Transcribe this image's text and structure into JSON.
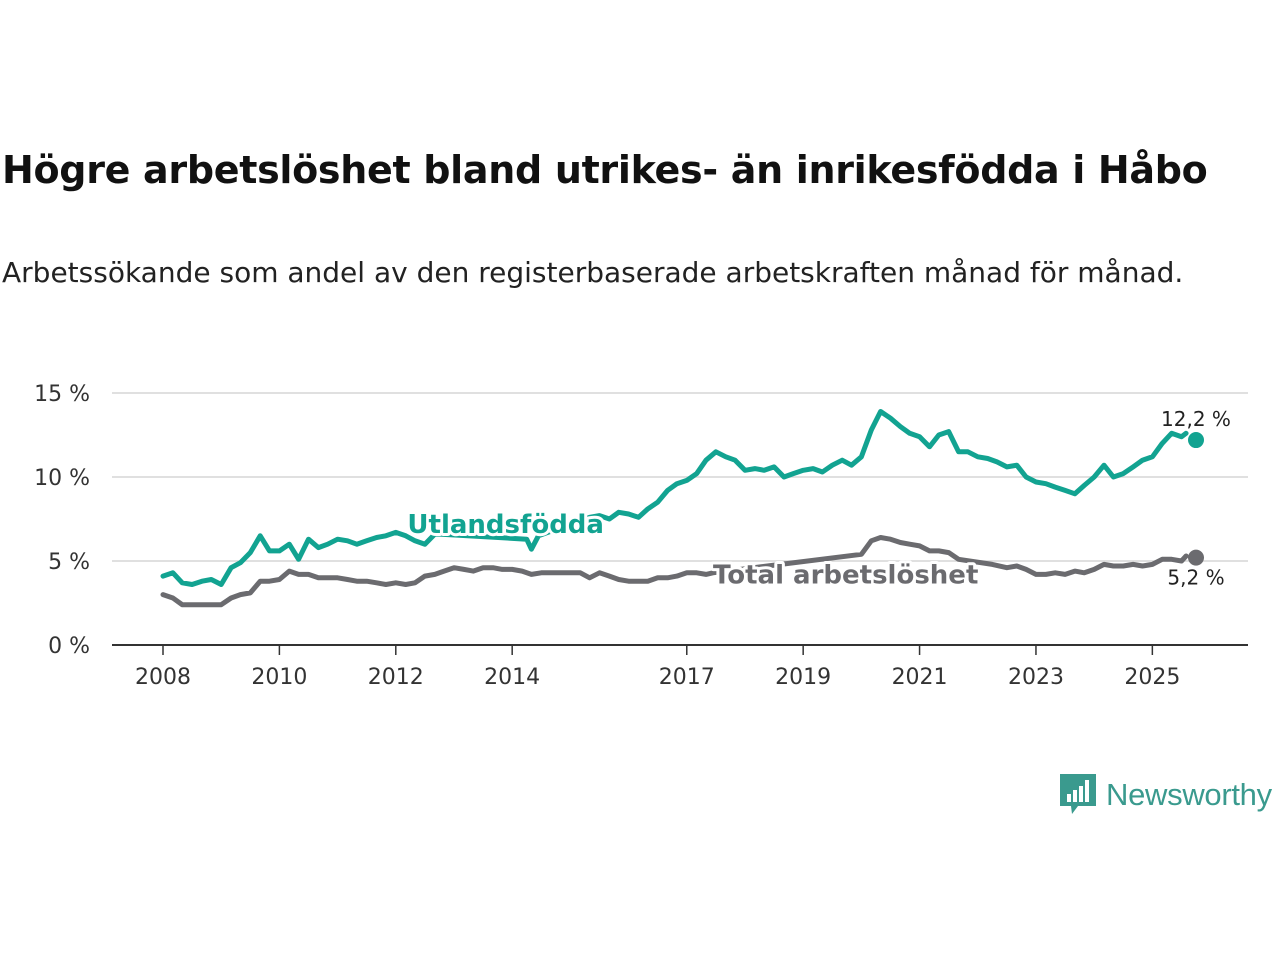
{
  "title": "Högre arbetslöshet bland utrikes- än inrikesfödda i Håbo",
  "subtitle": "Arbetssökande som andel av den registerbaserade arbetskraften månad för månad.",
  "brand": {
    "name": "Newsworthy",
    "color": "#3a9a8e",
    "icon": "bar-chart-speech-icon"
  },
  "chart_data": {
    "type": "line",
    "ylim": [
      0,
      15
    ],
    "y_ticks": [
      0,
      5,
      10,
      15
    ],
    "y_tick_labels": [
      "0 %",
      "5 %",
      "10 %",
      "15 %"
    ],
    "xlim": [
      2008.0,
      2025.75
    ],
    "x_ticks": [
      2008,
      2010,
      2012,
      2014,
      2017,
      2019,
      2021,
      2023,
      2025
    ],
    "x_tick_labels": [
      "2008",
      "2010",
      "2012",
      "2014",
      "2017",
      "2019",
      "2021",
      "2023",
      "2025"
    ],
    "grid": true,
    "series": [
      {
        "name": "Utlandsfödda",
        "color": "#12a391",
        "end_label": "12,2 %",
        "points": [
          [
            2008.0,
            4.1
          ],
          [
            2008.17,
            4.3
          ],
          [
            2008.33,
            3.7
          ],
          [
            2008.5,
            3.6
          ],
          [
            2008.67,
            3.8
          ],
          [
            2008.83,
            3.9
          ],
          [
            2009.0,
            3.6
          ],
          [
            2009.17,
            4.6
          ],
          [
            2009.33,
            4.9
          ],
          [
            2009.5,
            5.5
          ],
          [
            2009.67,
            6.5
          ],
          [
            2009.83,
            5.6
          ],
          [
            2010.0,
            5.6
          ],
          [
            2010.17,
            6.0
          ],
          [
            2010.33,
            5.1
          ],
          [
            2010.5,
            6.3
          ],
          [
            2010.67,
            5.8
          ],
          [
            2010.83,
            6.0
          ],
          [
            2011.0,
            6.3
          ],
          [
            2011.17,
            6.2
          ],
          [
            2011.33,
            6.0
          ],
          [
            2011.5,
            6.2
          ],
          [
            2011.67,
            6.4
          ],
          [
            2011.83,
            6.5
          ],
          [
            2012.0,
            6.7
          ],
          [
            2012.17,
            6.5
          ],
          [
            2012.33,
            6.2
          ],
          [
            2012.5,
            6.0
          ],
          [
            2012.67,
            6.6
          ],
          [
            2012.75,
            6.6
          ],
          [
            2014.25,
            6.3
          ],
          [
            2014.33,
            5.7
          ],
          [
            2014.45,
            6.5
          ],
          [
            2015.33,
            7.6
          ],
          [
            2015.5,
            7.7
          ],
          [
            2015.67,
            7.5
          ],
          [
            2015.83,
            7.9
          ],
          [
            2016.0,
            7.8
          ],
          [
            2016.17,
            7.6
          ],
          [
            2016.33,
            8.1
          ],
          [
            2016.5,
            8.5
          ],
          [
            2016.67,
            9.2
          ],
          [
            2016.83,
            9.6
          ],
          [
            2017.0,
            9.8
          ],
          [
            2017.17,
            10.2
          ],
          [
            2017.33,
            11.0
          ],
          [
            2017.5,
            11.5
          ],
          [
            2017.67,
            11.2
          ],
          [
            2017.83,
            11.0
          ],
          [
            2018.0,
            10.4
          ],
          [
            2018.17,
            10.5
          ],
          [
            2018.33,
            10.4
          ],
          [
            2018.5,
            10.6
          ],
          [
            2018.67,
            10.0
          ],
          [
            2018.83,
            10.2
          ],
          [
            2019.0,
            10.4
          ],
          [
            2019.17,
            10.5
          ],
          [
            2019.33,
            10.3
          ],
          [
            2019.5,
            10.7
          ],
          [
            2019.67,
            11.0
          ],
          [
            2019.83,
            10.7
          ],
          [
            2020.0,
            11.2
          ],
          [
            2020.17,
            12.8
          ],
          [
            2020.33,
            13.9
          ],
          [
            2020.5,
            13.5
          ],
          [
            2020.67,
            13.0
          ],
          [
            2020.83,
            12.6
          ],
          [
            2021.0,
            12.4
          ],
          [
            2021.17,
            11.8
          ],
          [
            2021.33,
            12.5
          ],
          [
            2021.5,
            12.7
          ],
          [
            2021.67,
            11.5
          ],
          [
            2021.83,
            11.5
          ],
          [
            2022.0,
            11.2
          ],
          [
            2022.17,
            11.1
          ],
          [
            2022.33,
            10.9
          ],
          [
            2022.5,
            10.6
          ],
          [
            2022.67,
            10.7
          ],
          [
            2022.83,
            10.0
          ],
          [
            2023.0,
            9.7
          ],
          [
            2023.17,
            9.6
          ],
          [
            2023.33,
            9.4
          ],
          [
            2023.5,
            9.2
          ],
          [
            2023.67,
            9.0
          ],
          [
            2023.83,
            9.5
          ],
          [
            2024.0,
            10.0
          ],
          [
            2024.17,
            10.7
          ],
          [
            2024.33,
            10.0
          ],
          [
            2024.5,
            10.2
          ],
          [
            2024.67,
            10.6
          ],
          [
            2024.83,
            11.0
          ],
          [
            2025.0,
            11.2
          ],
          [
            2025.17,
            12.0
          ],
          [
            2025.33,
            12.6
          ],
          [
            2025.5,
            12.4
          ],
          [
            2025.58,
            12.6
          ]
        ]
      },
      {
        "name": "Total arbetslöshet",
        "color": "#6b6b6f",
        "end_label": "5,2 %",
        "points": [
          [
            2008.0,
            3.0
          ],
          [
            2008.17,
            2.8
          ],
          [
            2008.33,
            2.4
          ],
          [
            2008.5,
            2.4
          ],
          [
            2008.67,
            2.4
          ],
          [
            2008.83,
            2.4
          ],
          [
            2009.0,
            2.4
          ],
          [
            2009.17,
            2.8
          ],
          [
            2009.33,
            3.0
          ],
          [
            2009.5,
            3.1
          ],
          [
            2009.67,
            3.8
          ],
          [
            2009.83,
            3.8
          ],
          [
            2010.0,
            3.9
          ],
          [
            2010.17,
            4.4
          ],
          [
            2010.33,
            4.2
          ],
          [
            2010.5,
            4.2
          ],
          [
            2010.67,
            4.0
          ],
          [
            2010.83,
            4.0
          ],
          [
            2011.0,
            4.0
          ],
          [
            2011.17,
            3.9
          ],
          [
            2011.33,
            3.8
          ],
          [
            2011.5,
            3.8
          ],
          [
            2011.67,
            3.7
          ],
          [
            2011.83,
            3.6
          ],
          [
            2012.0,
            3.7
          ],
          [
            2012.17,
            3.6
          ],
          [
            2012.33,
            3.7
          ],
          [
            2012.5,
            4.1
          ],
          [
            2012.67,
            4.2
          ],
          [
            2012.83,
            4.4
          ],
          [
            2013.0,
            4.6
          ],
          [
            2013.17,
            4.5
          ],
          [
            2013.33,
            4.4
          ],
          [
            2013.5,
            4.6
          ],
          [
            2013.67,
            4.6
          ],
          [
            2013.83,
            4.5
          ],
          [
            2014.0,
            4.5
          ],
          [
            2014.17,
            4.4
          ],
          [
            2014.33,
            4.2
          ],
          [
            2014.5,
            4.3
          ],
          [
            2014.67,
            4.3
          ],
          [
            2014.83,
            4.3
          ],
          [
            2015.0,
            4.3
          ],
          [
            2015.17,
            4.3
          ],
          [
            2015.33,
            4.0
          ],
          [
            2015.5,
            4.3
          ],
          [
            2015.67,
            4.1
          ],
          [
            2015.83,
            3.9
          ],
          [
            2016.0,
            3.8
          ],
          [
            2016.17,
            3.8
          ],
          [
            2016.33,
            3.8
          ],
          [
            2016.5,
            4.0
          ],
          [
            2016.67,
            4.0
          ],
          [
            2016.83,
            4.1
          ],
          [
            2017.0,
            4.3
          ],
          [
            2017.17,
            4.3
          ],
          [
            2017.33,
            4.2
          ],
          [
            2017.45,
            4.3
          ],
          [
            2020.0,
            5.4
          ],
          [
            2020.17,
            6.2
          ],
          [
            2020.33,
            6.4
          ],
          [
            2020.5,
            6.3
          ],
          [
            2020.67,
            6.1
          ],
          [
            2020.83,
            6.0
          ],
          [
            2021.0,
            5.9
          ],
          [
            2021.17,
            5.6
          ],
          [
            2021.33,
            5.6
          ],
          [
            2021.5,
            5.5
          ],
          [
            2021.67,
            5.1
          ],
          [
            2022.25,
            4.8
          ],
          [
            2022.5,
            4.6
          ],
          [
            2022.67,
            4.7
          ],
          [
            2022.83,
            4.5
          ],
          [
            2023.0,
            4.2
          ],
          [
            2023.17,
            4.2
          ],
          [
            2023.33,
            4.3
          ],
          [
            2023.5,
            4.2
          ],
          [
            2023.67,
            4.4
          ],
          [
            2023.83,
            4.3
          ],
          [
            2024.0,
            4.5
          ],
          [
            2024.17,
            4.8
          ],
          [
            2024.33,
            4.7
          ],
          [
            2024.5,
            4.7
          ],
          [
            2024.67,
            4.8
          ],
          [
            2024.83,
            4.7
          ],
          [
            2025.0,
            4.8
          ],
          [
            2025.17,
            5.1
          ],
          [
            2025.33,
            5.1
          ],
          [
            2025.5,
            5.0
          ],
          [
            2025.58,
            5.3
          ]
        ]
      }
    ],
    "end_points": [
      {
        "series": "Utlandsfödda",
        "x": 2025.75,
        "y": 12.2
      },
      {
        "series": "Total arbetslöshet",
        "x": 2025.75,
        "y": 5.2
      }
    ]
  }
}
